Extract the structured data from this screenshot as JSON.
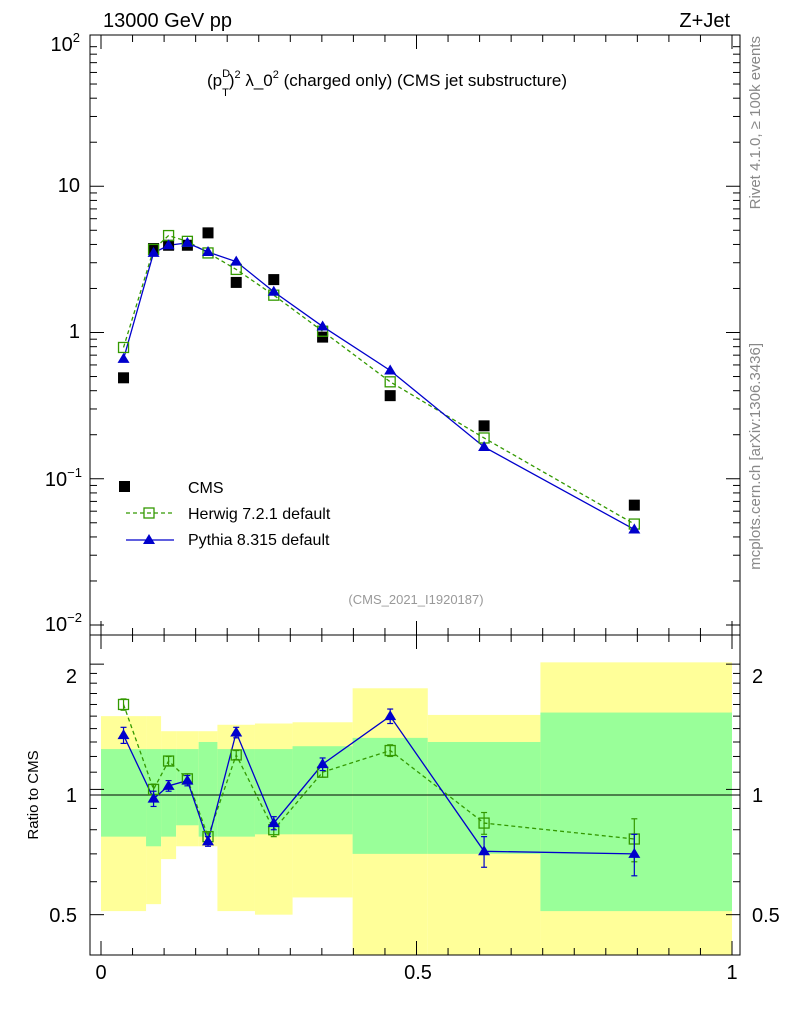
{
  "header": {
    "left": "13000 GeV pp",
    "right": "Z+Jet"
  },
  "side": {
    "rivet": "Rivet 4.1.0, ≥ 100k events",
    "mcplots": "mcplots.cern.ch [arXiv:1306.3436]"
  },
  "chart_data": {
    "type": "scatter",
    "title": {
      "p": "(p",
      "sup_d": "D",
      "sub_t": "T",
      "close": ")",
      "sup_2": "2",
      "lambda": " λ_0",
      "sup_2b": "2",
      "rest": " (charged only) (CMS jet substructure)"
    },
    "watermark": "(CMS_2021_I1920187)",
    "x": [
      0.0357,
      0.0833,
      0.1071,
      0.1369,
      0.1696,
      0.2143,
      0.2738,
      0.3512,
      0.4583,
      0.6071,
      0.8452
    ],
    "bins": [
      0,
      0.0714,
      0.0952,
      0.119,
      0.1548,
      0.1845,
      0.244,
      0.3036,
      0.3988,
      0.5179,
      0.6964,
      1.0
    ],
    "series": [
      {
        "name": "CMS",
        "color": "#000000",
        "marker": "square-filled",
        "values": [
          0.49,
          3.75,
          3.95,
          3.95,
          4.8,
          2.2,
          2.3,
          0.93,
          0.37,
          0.23,
          0.066
        ]
      },
      {
        "name": "Herwig 7.2.1 default",
        "color": "#339900",
        "marker": "square-open",
        "dashed": true,
        "values": [
          0.79,
          3.7,
          4.6,
          4.2,
          3.5,
          2.7,
          1.8,
          1.02,
          0.46,
          0.19,
          0.049
        ]
      },
      {
        "name": "Pythia 8.315 default",
        "color": "#0000cc",
        "marker": "triangle-filled",
        "dashed": false,
        "values": [
          0.66,
          3.5,
          3.95,
          4.1,
          3.55,
          3.05,
          1.9,
          1.1,
          0.55,
          0.165,
          0.045
        ]
      }
    ],
    "ratio": {
      "ylabel": "Ratio to CMS",
      "herwig": [
        1.6,
        1.0,
        1.17,
        1.06,
        0.77,
        1.21,
        0.8,
        1.1,
        1.24,
        0.83,
        0.76
      ],
      "herwig_err": [
        0.05,
        0.03,
        0.03,
        0.03,
        0.02,
        0.03,
        0.03,
        0.03,
        0.04,
        0.05,
        0.09
      ],
      "pythia": [
        1.35,
        0.95,
        1.02,
        1.05,
        0.75,
        1.37,
        0.83,
        1.15,
        1.5,
        0.71,
        0.7
      ],
      "pythia_err": [
        0.06,
        0.04,
        0.03,
        0.03,
        0.02,
        0.04,
        0.03,
        0.04,
        0.06,
        0.06,
        0.08
      ],
      "band_green": [
        [
          0.77,
          1.25
        ],
        [
          0.73,
          1.25
        ],
        [
          0.77,
          1.25
        ],
        [
          0.82,
          1.25
        ],
        [
          0.77,
          1.3
        ],
        [
          0.77,
          1.25
        ],
        [
          0.78,
          1.25
        ],
        [
          0.78,
          1.27
        ],
        [
          0.7,
          1.33
        ],
        [
          0.7,
          1.3
        ],
        [
          0.51,
          1.53
        ]
      ],
      "band_yellow": [
        [
          0.51,
          1.5
        ],
        [
          0.53,
          1.5
        ],
        [
          0.68,
          1.38
        ],
        [
          0.73,
          1.38
        ],
        [
          0.73,
          1.38
        ],
        [
          0.51,
          1.43
        ],
        [
          0.5,
          1.44
        ],
        [
          0.55,
          1.45
        ],
        [
          0.25,
          1.75
        ],
        [
          0.4,
          1.51
        ],
        [
          0.3,
          2.02
        ]
      ],
      "ylim": [
        0.4,
        2.35
      ],
      "yticks": [
        "0.5",
        "1",
        "2"
      ]
    },
    "xlim": [
      0,
      1
    ],
    "ylim": [
      0.01,
      100
    ],
    "xticks": [
      "0",
      "0.5",
      "1"
    ],
    "yticks": {
      "e_base_m2": "10",
      "e_exp_m2": "−2",
      "e_base_m1": "10",
      "e_exp_m1": "−1",
      "one": "1",
      "ten": "10",
      "e_base_2": "10",
      "e_exp_2": "2"
    }
  }
}
